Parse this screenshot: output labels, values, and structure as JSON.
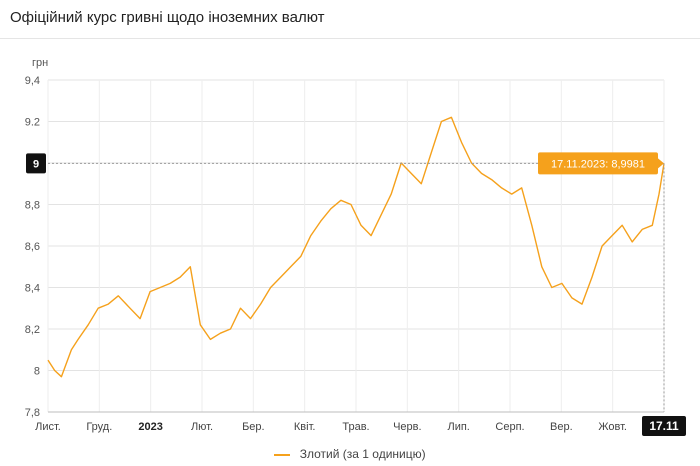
{
  "header": {
    "title": "Офіційний курс гривні щодо іноземних валют"
  },
  "chart_data": {
    "type": "line",
    "ylabel": "грн",
    "ylim": [
      7.8,
      9.4
    ],
    "yticks": [
      "7,8",
      "8",
      "8,2",
      "8,4",
      "8,6",
      "8,8",
      "9",
      "9.2",
      "9,4"
    ],
    "yticks_values": [
      7.8,
      8.0,
      8.2,
      8.4,
      8.6,
      8.8,
      9.0,
      9.2,
      9.4
    ],
    "x_categories": [
      "Лист.",
      "Груд.",
      "2023",
      "Лют.",
      "Бер.",
      "Квіт.",
      "Трав.",
      "Черв.",
      "Лип.",
      "Серп.",
      "Вер.",
      "Жовт.",
      "Лист."
    ],
    "grid": true,
    "series": [
      {
        "name": "Злотий (за 1 одиницю)",
        "color": "#f5a11c",
        "x": [
          "2022-11-14",
          "2022-11-18",
          "2022-11-22",
          "2022-11-28",
          "2022-12-02",
          "2022-12-08",
          "2022-12-14",
          "2022-12-20",
          "2022-12-26",
          "2023-01-02",
          "2023-01-08",
          "2023-01-14",
          "2023-01-20",
          "2023-01-26",
          "2023-02-01",
          "2023-02-07",
          "2023-02-13",
          "2023-02-19",
          "2023-02-25",
          "2023-03-03",
          "2023-03-09",
          "2023-03-15",
          "2023-03-21",
          "2023-03-27",
          "2023-04-02",
          "2023-04-08",
          "2023-04-14",
          "2023-04-20",
          "2023-04-26",
          "2023-05-02",
          "2023-05-08",
          "2023-05-14",
          "2023-05-20",
          "2023-05-26",
          "2023-06-01",
          "2023-06-07",
          "2023-06-13",
          "2023-06-19",
          "2023-06-25",
          "2023-07-01",
          "2023-07-07",
          "2023-07-13",
          "2023-07-19",
          "2023-07-25",
          "2023-07-31",
          "2023-08-06",
          "2023-08-12",
          "2023-08-18",
          "2023-08-24",
          "2023-08-30",
          "2023-09-05",
          "2023-09-11",
          "2023-09-17",
          "2023-09-23",
          "2023-09-29",
          "2023-10-05",
          "2023-10-11",
          "2023-10-17",
          "2023-10-23",
          "2023-10-29",
          "2023-11-04",
          "2023-11-10",
          "2023-11-14",
          "2023-11-17"
        ],
        "values": [
          8.05,
          8.0,
          7.97,
          8.1,
          8.15,
          8.22,
          8.3,
          8.32,
          8.36,
          8.3,
          8.25,
          8.38,
          8.4,
          8.42,
          8.45,
          8.5,
          8.22,
          8.15,
          8.18,
          8.2,
          8.3,
          8.25,
          8.32,
          8.4,
          8.45,
          8.5,
          8.55,
          8.65,
          8.72,
          8.78,
          8.82,
          8.8,
          8.7,
          8.65,
          8.75,
          8.85,
          9.0,
          8.95,
          8.9,
          9.05,
          9.2,
          9.22,
          9.1,
          9.0,
          8.95,
          8.92,
          8.88,
          8.85,
          8.88,
          8.7,
          8.5,
          8.4,
          8.42,
          8.35,
          8.32,
          8.45,
          8.6,
          8.65,
          8.7,
          8.62,
          8.68,
          8.7,
          8.85,
          8.9981
        ]
      }
    ],
    "highlight": {
      "label": "17.11.2023: 8,9981",
      "y_badge": "9",
      "x_badge": "17.11"
    }
  }
}
